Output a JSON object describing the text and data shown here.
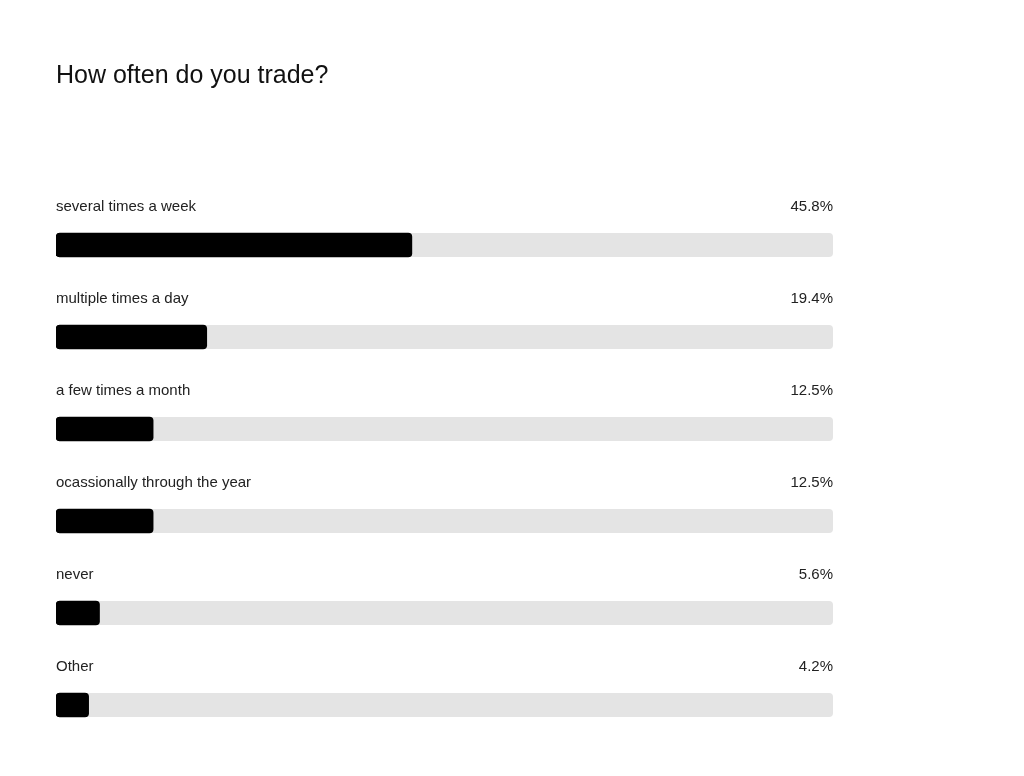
{
  "chart_data": {
    "type": "bar",
    "orientation": "horizontal",
    "title": "How often do you trade?",
    "categories": [
      "several times a week",
      "multiple times a day",
      "a few times a month",
      "ocassionally through the year",
      "never",
      "Other"
    ],
    "values": [
      45.8,
      19.4,
      12.5,
      12.5,
      5.6,
      4.2
    ],
    "value_labels": [
      "45.8%",
      "19.4%",
      "12.5%",
      "12.5%",
      "5.6%",
      "4.2%"
    ],
    "color": "#000000",
    "xlim": [
      0,
      100
    ],
    "legend": false
  }
}
